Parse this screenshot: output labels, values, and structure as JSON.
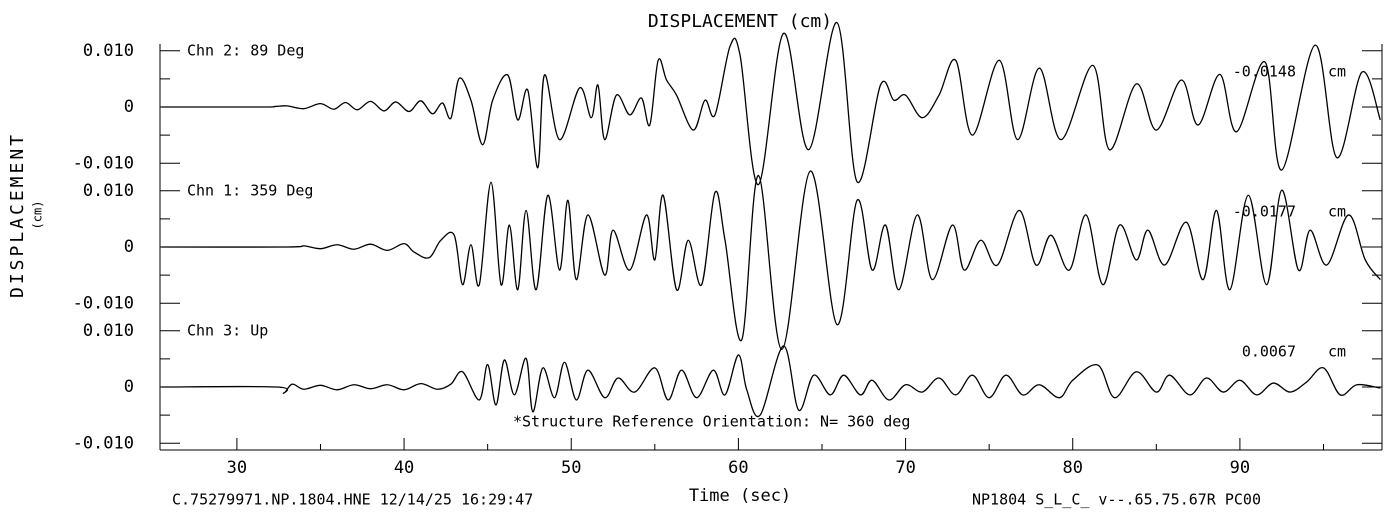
{
  "chart_data": {
    "type": "line",
    "title": "DISPLACEMENT (cm)",
    "ylabel": "DISPLACEMENT",
    "ylabel_unit": "(cm)",
    "xlabel": "Time (sec)",
    "footer_left": "C.75279971.NP.1804.HNE 12/14/25 16:29:47",
    "footer_right": "NP1804  S_L_C_  v--.65.75.67R PC00",
    "annotation": "*Structure Reference Orientation: N= 360 deg",
    "peak_unit": "cm",
    "color": "#000000",
    "xlim": [
      25.4,
      98.5
    ],
    "xticks": [
      30,
      40,
      50,
      60,
      70,
      80,
      90
    ],
    "xminorticks": [
      35,
      45,
      55,
      65,
      75,
      85,
      95
    ],
    "ylim": [
      -0.0112,
      0.0112
    ],
    "yticks": [
      {
        "value": -0.01,
        "label": "-0.010"
      },
      0,
      {
        "value": 0.01,
        "label": "0.010"
      }
    ],
    "yminorticks": [
      -0.005,
      0.005
    ],
    "series": [
      {
        "name": "Chn 2: 89 Deg",
        "peak_label": "-0.0148",
        "x": [
          25.5,
          31.5,
          32.3,
          33,
          34,
          35,
          35.8,
          36.5,
          37.2,
          38,
          38.8,
          39.5,
          40.3,
          41,
          41.7,
          42.3,
          42.8,
          43.3,
          44,
          44.7,
          45.3,
          46.2,
          46.8,
          47.4,
          48,
          48.4,
          49.3,
          50.5,
          51.2,
          51.6,
          52,
          52.7,
          53.5,
          54.2,
          54.7,
          55.2,
          55.7,
          56.3,
          57.3,
          58,
          58.6,
          59.5,
          60.1,
          61.2,
          62.7,
          64.2,
          65.9,
          67.1,
          68.5,
          69.3,
          70,
          71,
          72,
          73,
          74,
          75.6,
          76.7,
          78,
          79.3,
          81.2,
          82.2,
          83.8,
          85,
          86.5,
          87.5,
          88.8,
          89.8,
          91.5,
          92.5,
          94.5,
          95.8,
          97.3,
          98.4
        ],
        "values": [
          0,
          0,
          0.0001,
          0.0002,
          -0.0003,
          0.0006,
          -0.0004,
          0.0008,
          -0.0005,
          0.001,
          -0.0007,
          0.0009,
          -0.0008,
          0.0011,
          -0.0012,
          0.0007,
          -0.002,
          0.0051,
          0.0012,
          -0.0067,
          0.0012,
          0.0057,
          -0.0023,
          0.003,
          -0.0108,
          0.0057,
          -0.0058,
          0.0034,
          -0.0019,
          0.0039,
          -0.0058,
          0.0021,
          -0.0014,
          0.0016,
          -0.0032,
          0.0083,
          0.0048,
          0.0021,
          -0.0041,
          0.0012,
          -0.0014,
          0.0108,
          0.0092,
          -0.0138,
          0.0131,
          -0.0076,
          0.015,
          -0.0133,
          0.0039,
          0.0012,
          0.0021,
          -0.0019,
          0.0021,
          0.0083,
          -0.005,
          0.0083,
          -0.0058,
          0.0069,
          -0.0058,
          0.0074,
          -0.0076,
          0.0041,
          -0.0041,
          0.0048,
          -0.0032,
          0.0058,
          -0.0044,
          0.008,
          -0.0112,
          0.011,
          -0.009,
          0.0062,
          -0.0023
        ]
      },
      {
        "name": "Chn 1: 359 Deg",
        "peak_label": "-0.0177",
        "x": [
          25.5,
          33,
          34,
          35,
          36,
          37,
          38,
          39,
          40,
          40.6,
          41.5,
          42.2,
          43,
          43.5,
          44,
          44.5,
          45.2,
          45.8,
          46.3,
          46.8,
          47.3,
          47.9,
          48.6,
          49.3,
          49.8,
          50.3,
          51,
          52,
          52.5,
          53.5,
          54.5,
          55,
          55.5,
          56.3,
          57,
          57.8,
          58.6,
          59.2,
          60.2,
          61.2,
          62.6,
          64.3,
          65.9,
          67.1,
          68,
          68.8,
          69.6,
          70.7,
          71.6,
          72.8,
          73.5,
          74.5,
          75.5,
          76.8,
          77.8,
          78.7,
          79.8,
          80.8,
          81.8,
          82.8,
          83.8,
          84.5,
          85.5,
          86.8,
          87.8,
          88.6,
          89.4,
          90.5,
          91.6,
          92.5,
          93.5,
          94.2,
          95.2,
          96.5,
          97.5,
          98.4
        ],
        "values": [
          0,
          0,
          0.0002,
          -0.0003,
          0.0004,
          -0.0004,
          0.0005,
          -0.0006,
          0.0006,
          -0.0009,
          -0.0019,
          0.0012,
          0.0021,
          -0.0067,
          0.0004,
          -0.0067,
          0.0115,
          -0.0067,
          0.0039,
          -0.0076,
          0.0065,
          -0.0076,
          0.0092,
          -0.0041,
          0.0083,
          -0.0058,
          0.0057,
          -0.005,
          0.003,
          -0.0041,
          0.0057,
          -0.0023,
          0.0092,
          -0.0076,
          0.0012,
          -0.0067,
          0.0097,
          0.0012,
          -0.0165,
          0.0127,
          -0.0182,
          0.0135,
          -0.0138,
          0.0083,
          -0.0041,
          0.0039,
          -0.0076,
          0.0057,
          -0.0058,
          0.0039,
          -0.0041,
          0.0012,
          -0.0032,
          0.0065,
          -0.0032,
          0.0021,
          -0.0041,
          0.0057,
          -0.0067,
          0.0039,
          -0.0023,
          0.003,
          -0.0032,
          0.0044,
          -0.0058,
          0.0065,
          -0.0076,
          0.0092,
          -0.0067,
          0.0101,
          -0.0041,
          0.003,
          -0.0032,
          0.0057,
          -0.0023,
          -0.0058
        ]
      },
      {
        "name": "Chn 3: Up",
        "peak_label": "0.0067",
        "x": [
          25.5,
          32.4,
          32.8,
          33.3,
          34,
          35,
          36,
          37,
          38,
          39,
          40,
          41,
          42,
          42.8,
          43.5,
          44.5,
          45,
          45.5,
          46,
          46.6,
          47.3,
          47.7,
          48.3,
          49,
          49.6,
          50.3,
          51,
          52,
          52.8,
          53.8,
          55,
          55.8,
          56.6,
          57.5,
          58.5,
          59.2,
          60,
          60.5,
          61.3,
          62.7,
          63.6,
          64.5,
          65.5,
          66.3,
          67.3,
          68,
          69,
          70,
          71,
          72,
          73,
          74,
          75,
          76,
          77,
          78,
          79.2,
          80,
          81.5,
          82.5,
          83.8,
          85,
          85.8,
          87,
          88,
          89,
          90,
          91,
          92,
          93,
          94,
          95,
          96,
          97,
          98.4
        ],
        "values": [
          0,
          0,
          -0.0011,
          0.0005,
          -0.0004,
          0.0003,
          -0.0005,
          0.0004,
          -0.0003,
          0.0004,
          -0.0005,
          0.0006,
          -0.0004,
          0.0005,
          0.0027,
          -0.0023,
          0.004,
          -0.0032,
          0.0048,
          -0.0014,
          0.0051,
          -0.0044,
          0.0034,
          -0.0019,
          0.0044,
          -0.0023,
          0.003,
          -0.0019,
          0.0016,
          -0.0009,
          0.0034,
          -0.0023,
          0.003,
          -0.0019,
          0.003,
          -0.0014,
          0.0057,
          -0.0005,
          -0.005,
          0.0073,
          -0.0041,
          0.0021,
          -0.0014,
          0.0021,
          -0.0014,
          0.0012,
          -0.0023,
          0.0004,
          -0.0009,
          0.0016,
          -0.0014,
          0.0021,
          -0.0019,
          0.0021,
          -0.0014,
          0.0004,
          -0.0019,
          0.0012,
          0.0039,
          -0.0019,
          0.0027,
          -0.0009,
          0.0021,
          -0.0014,
          0.0016,
          -0.0009,
          0.0012,
          -0.0014,
          0.0007,
          -0.0009,
          0.0009,
          0.0034,
          -0.0014,
          0.0004,
          -0.0002
        ]
      }
    ]
  }
}
